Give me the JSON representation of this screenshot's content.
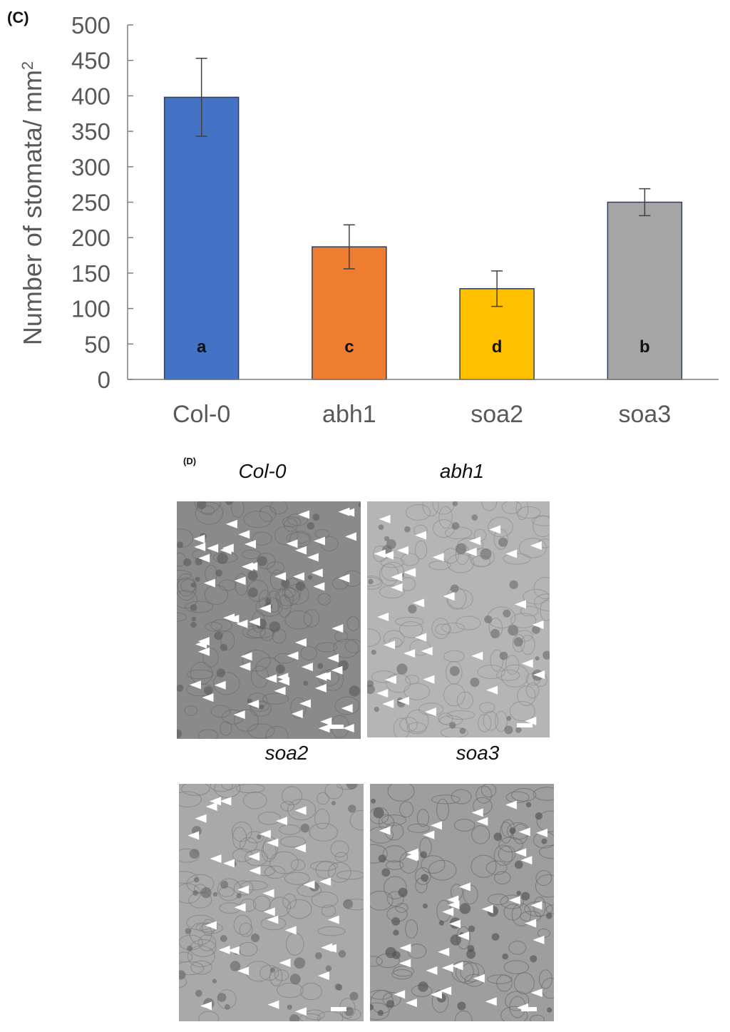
{
  "panel_c_label": "(C)",
  "panel_d_label": "(D)",
  "chart_data": {
    "type": "bar",
    "title": "",
    "xlabel": "",
    "ylabel": "Number of stomata/ mm",
    "ylabel_superscript": "2",
    "ylim": [
      0,
      500
    ],
    "yticks": [
      0,
      50,
      100,
      150,
      200,
      250,
      300,
      350,
      400,
      450,
      500
    ],
    "grid": false,
    "categories": [
      "Col-0",
      "abh1",
      "soa2",
      "soa3"
    ],
    "values": [
      398,
      187,
      128,
      250
    ],
    "errors": [
      55,
      31,
      25,
      19
    ],
    "significance_letters": [
      "a",
      "c",
      "d",
      "b"
    ],
    "colors": [
      "#4472c4",
      "#ed7d31",
      "#ffc000",
      "#a5a5a5"
    ]
  },
  "micrographs": [
    {
      "label": "Col-0"
    },
    {
      "label": "abh1"
    },
    {
      "label": "soa2"
    },
    {
      "label": "soa3"
    }
  ]
}
